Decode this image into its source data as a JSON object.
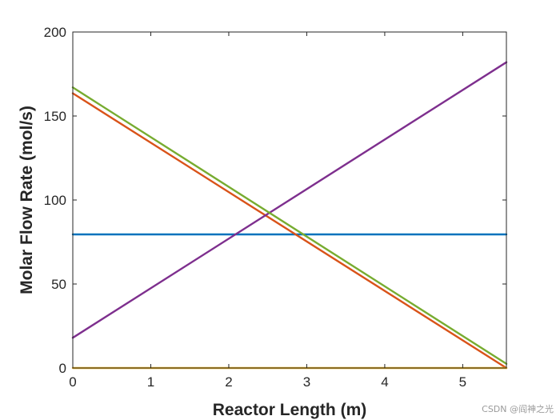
{
  "chart_data": {
    "type": "line",
    "xlabel": "Reactor Length (m)",
    "ylabel": "Molar Flow Rate (mol/s)",
    "xlim": [
      0,
      5.56
    ],
    "ylim": [
      0,
      200
    ],
    "xticks": [
      0,
      1,
      2,
      3,
      4,
      5
    ],
    "yticks": [
      0,
      50,
      100,
      150,
      200
    ],
    "grid": false,
    "box": true,
    "series": [
      {
        "color": "#0072BD",
        "x": [
          0,
          5.56
        ],
        "y": [
          79.5,
          79.5
        ]
      },
      {
        "color": "#D95319",
        "x": [
          0,
          5.56
        ],
        "y": [
          163.5,
          0
        ]
      },
      {
        "color": "#EDB120",
        "x": [
          0,
          5.56
        ],
        "y": [
          0,
          0
        ]
      },
      {
        "color": "#7E2F8E",
        "x": [
          0,
          5.56
        ],
        "y": [
          18,
          182
        ]
      },
      {
        "color": "#77AC30",
        "x": [
          0,
          5.56
        ],
        "y": [
          167,
          2.5
        ]
      }
    ]
  },
  "watermark": "CSDN @阎神之光"
}
